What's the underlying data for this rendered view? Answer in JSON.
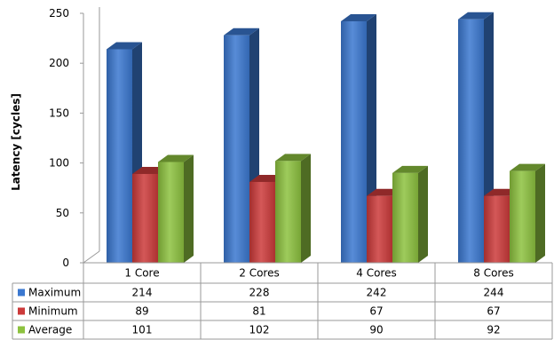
{
  "chart_data": {
    "type": "bar",
    "style": "3d-clustered-column-with-data-table",
    "ylabel": "Latency [cycles]",
    "xlabel": "",
    "ylim": [
      0,
      250
    ],
    "yticks": [
      0,
      50,
      100,
      150,
      200,
      250
    ],
    "grid": false,
    "legend": "data-table-left",
    "categories": [
      "1 Core",
      "2 Cores",
      "4 Cores",
      "8 Cores"
    ],
    "series": [
      {
        "name": "Maximum",
        "color": "#3B78D0",
        "values": [
          214,
          228,
          242,
          244
        ]
      },
      {
        "name": "Minimum",
        "color": "#CC3A3A",
        "values": [
          89,
          81,
          67,
          67
        ]
      },
      {
        "name": "Average",
        "color": "#8DC23F",
        "values": [
          101,
          102,
          90,
          92
        ]
      }
    ]
  }
}
